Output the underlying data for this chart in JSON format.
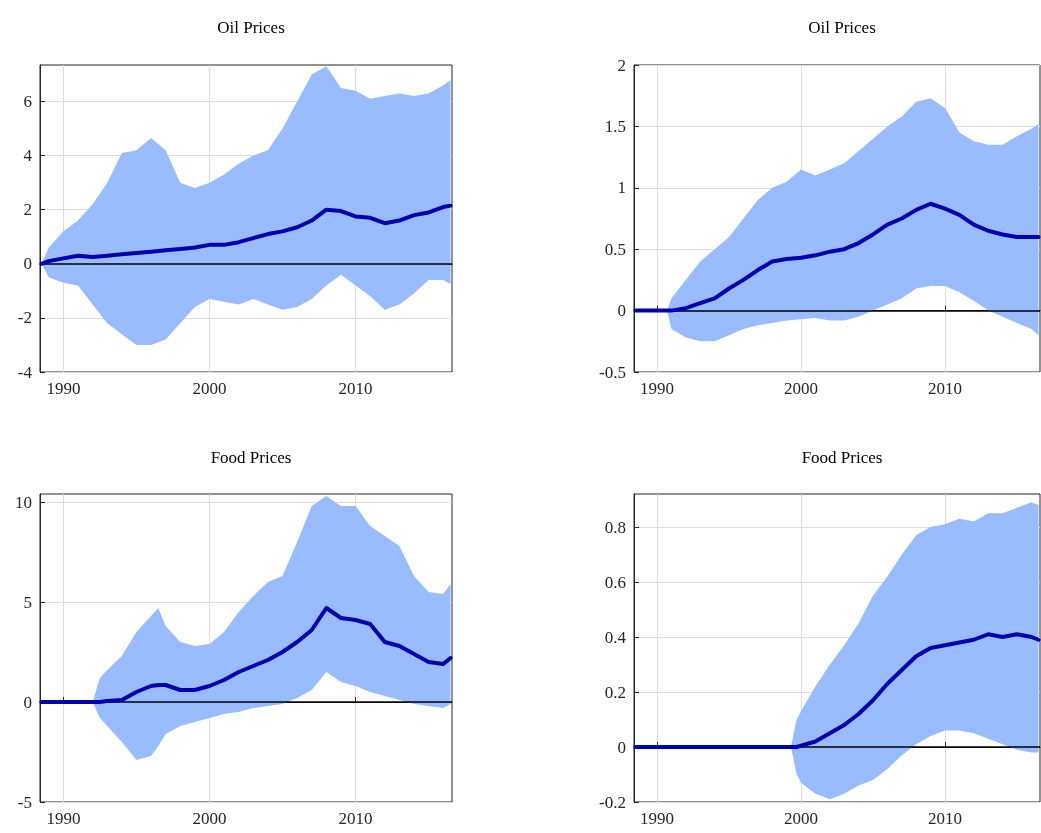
{
  "chart_data": [
    {
      "type": "line",
      "title": "Oil Prices",
      "xlim": [
        1988.4,
        2016.6
      ],
      "xticks": [
        1990,
        2000,
        2010
      ],
      "ylim": [
        -4,
        7.35
      ],
      "yticks": [
        -4,
        -2,
        0,
        2,
        4,
        6
      ],
      "grid": true,
      "marker": "none",
      "line_style": "solid",
      "series": [
        {
          "color": "#0000b0",
          "x": [
            1988.5,
            1989,
            1990,
            1991,
            1992,
            1993,
            1994,
            1995,
            1996,
            1997,
            1998,
            1999,
            2000,
            2001,
            2002,
            2003,
            2004,
            2005,
            2006,
            2007,
            2008,
            2009,
            2010,
            2011,
            2012,
            2013,
            2014,
            2015,
            2016,
            2016.5
          ],
          "values": [
            0,
            0.1,
            0.2,
            0.3,
            0.25,
            0.3,
            0.35,
            0.4,
            0.45,
            0.5,
            0.55,
            0.6,
            0.7,
            0.7,
            0.8,
            0.95,
            1.1,
            1.2,
            1.35,
            1.6,
            2.0,
            1.95,
            1.75,
            1.7,
            1.5,
            1.6,
            1.8,
            1.9,
            2.1,
            2.15
          ],
          "upper": [
            0,
            0.6,
            1.2,
            1.6,
            2.2,
            3.0,
            4.1,
            4.2,
            4.65,
            4.2,
            3.0,
            2.8,
            3.0,
            3.3,
            3.7,
            4.0,
            4.2,
            5.0,
            6.0,
            7.0,
            7.3,
            6.5,
            6.4,
            6.1,
            6.2,
            6.3,
            6.2,
            6.3,
            6.6,
            6.8
          ],
          "lower": [
            0,
            -0.5,
            -0.7,
            -0.8,
            -1.5,
            -2.2,
            -2.6,
            -3.0,
            -3.0,
            -2.8,
            -2.2,
            -1.6,
            -1.3,
            -1.4,
            -1.5,
            -1.3,
            -1.5,
            -1.7,
            -1.6,
            -1.3,
            -0.8,
            -0.4,
            -0.8,
            -1.2,
            -1.7,
            -1.5,
            -1.1,
            -0.6,
            -0.6,
            -0.75
          ]
        }
      ],
      "ref_lines": [
        {
          "axis": "y",
          "value": 0,
          "color": "#000000"
        }
      ]
    },
    {
      "type": "line",
      "title": "Oil Prices",
      "xlim": [
        1988.4,
        2016.6
      ],
      "xticks": [
        1990,
        2000,
        2010
      ],
      "ylim": [
        -0.5,
        2
      ],
      "yticks": [
        -0.5,
        0,
        0.5,
        1,
        1.5,
        2
      ],
      "grid": true,
      "marker": "none",
      "line_style": "solid",
      "series": [
        {
          "color": "#0000b0",
          "x": [
            1988.5,
            1990.7,
            1991,
            1992,
            1993,
            1994,
            1995,
            1996,
            1997,
            1998,
            1999,
            2000,
            2001,
            2002,
            2003,
            2004,
            2005,
            2006,
            2007,
            2008,
            2009,
            2010,
            2011,
            2012,
            2013,
            2014,
            2015,
            2016,
            2016.5
          ],
          "values": [
            0,
            0,
            0,
            0.02,
            0.06,
            0.1,
            0.18,
            0.25,
            0.33,
            0.4,
            0.42,
            0.43,
            0.45,
            0.48,
            0.5,
            0.55,
            0.62,
            0.7,
            0.75,
            0.82,
            0.87,
            0.83,
            0.78,
            0.7,
            0.65,
            0.62,
            0.6,
            0.6,
            0.6
          ],
          "upper": [
            0,
            0,
            0.1,
            0.25,
            0.4,
            0.5,
            0.6,
            0.75,
            0.9,
            1.0,
            1.05,
            1.15,
            1.1,
            1.15,
            1.2,
            1.3,
            1.4,
            1.5,
            1.58,
            1.7,
            1.73,
            1.65,
            1.45,
            1.38,
            1.35,
            1.35,
            1.42,
            1.48,
            1.52
          ],
          "lower": [
            0,
            0,
            -0.15,
            -0.22,
            -0.25,
            -0.25,
            -0.2,
            -0.15,
            -0.12,
            -0.1,
            -0.08,
            -0.07,
            -0.06,
            -0.08,
            -0.08,
            -0.05,
            0,
            0.05,
            0.1,
            0.18,
            0.2,
            0.2,
            0.15,
            0.08,
            0,
            -0.05,
            -0.1,
            -0.15,
            -0.2
          ]
        }
      ],
      "ref_lines": [
        {
          "axis": "y",
          "value": 0,
          "color": "#000000"
        }
      ]
    },
    {
      "type": "line",
      "title": "Food Prices",
      "xlim": [
        1988.4,
        2016.6
      ],
      "xticks": [
        1990,
        2000,
        2010
      ],
      "ylim": [
        -5,
        10.4
      ],
      "yticks": [
        -5,
        0,
        5,
        10
      ],
      "grid": true,
      "marker": "none",
      "line_style": "solid",
      "series": [
        {
          "color": "#0000b0",
          "x": [
            1988.5,
            1992,
            1992.5,
            1993,
            1994,
            1995,
            1996,
            1996.5,
            1997,
            1998,
            1999,
            2000,
            2001,
            2002,
            2003,
            2004,
            2005,
            2006,
            2007,
            2008,
            2009,
            2010,
            2011,
            2012,
            2013,
            2014,
            2015,
            2016,
            2016.5
          ],
          "values": [
            0,
            0,
            0,
            0.05,
            0.1,
            0.5,
            0.8,
            0.85,
            0.85,
            0.6,
            0.6,
            0.8,
            1.1,
            1.5,
            1.8,
            2.1,
            2.5,
            3.0,
            3.6,
            4.7,
            4.2,
            4.1,
            3.9,
            3.0,
            2.8,
            2.4,
            2.0,
            1.9,
            2.2
          ],
          "upper": [
            0,
            0,
            1.2,
            1.6,
            2.3,
            3.5,
            4.3,
            4.7,
            3.8,
            3.0,
            2.8,
            2.9,
            3.5,
            4.5,
            5.3,
            6.0,
            6.3,
            8.0,
            9.8,
            10.3,
            9.8,
            9.8,
            8.8,
            8.3,
            7.8,
            6.3,
            5.5,
            5.4,
            5.9
          ],
          "lower": [
            0,
            0,
            -0.8,
            -1.2,
            -2.0,
            -2.9,
            -2.7,
            -2.2,
            -1.6,
            -1.2,
            -1.0,
            -0.8,
            -0.6,
            -0.5,
            -0.3,
            -0.2,
            -0.1,
            0.2,
            0.6,
            1.5,
            1.0,
            0.8,
            0.5,
            0.3,
            0.1,
            -0.1,
            -0.2,
            -0.3,
            -0.1
          ]
        }
      ],
      "ref_lines": [
        {
          "axis": "y",
          "value": 0,
          "color": "#000000"
        }
      ]
    },
    {
      "type": "line",
      "title": "Food Prices",
      "xlim": [
        1988.4,
        2016.6
      ],
      "xticks": [
        1990,
        2000,
        2010
      ],
      "ylim": [
        -0.2,
        0.92
      ],
      "yticks": [
        -0.2,
        0,
        0.2,
        0.4,
        0.6,
        0.8
      ],
      "grid": true,
      "marker": "none",
      "line_style": "solid",
      "series": [
        {
          "color": "#0000b0",
          "x": [
            1988.5,
            1999.3,
            1999.7,
            2000,
            2001,
            2002,
            2003,
            2004,
            2005,
            2006,
            2007,
            2008,
            2009,
            2010,
            2011,
            2012,
            2013,
            2014,
            2015,
            2016,
            2016.5
          ],
          "values": [
            0,
            0,
            0,
            0.005,
            0.02,
            0.05,
            0.08,
            0.12,
            0.17,
            0.23,
            0.28,
            0.33,
            0.36,
            0.37,
            0.38,
            0.39,
            0.41,
            0.4,
            0.41,
            0.4,
            0.39
          ],
          "upper": [
            0,
            0,
            0.1,
            0.13,
            0.22,
            0.3,
            0.37,
            0.45,
            0.55,
            0.62,
            0.7,
            0.77,
            0.8,
            0.81,
            0.83,
            0.82,
            0.85,
            0.85,
            0.87,
            0.89,
            0.88
          ],
          "lower": [
            0,
            0,
            -0.1,
            -0.13,
            -0.17,
            -0.19,
            -0.17,
            -0.14,
            -0.12,
            -0.08,
            -0.03,
            0.01,
            0.04,
            0.06,
            0.06,
            0.05,
            0.03,
            0.01,
            -0.01,
            -0.02,
            -0.02
          ]
        }
      ],
      "ref_lines": [
        {
          "axis": "y",
          "value": 0,
          "color": "#000000"
        }
      ]
    }
  ]
}
